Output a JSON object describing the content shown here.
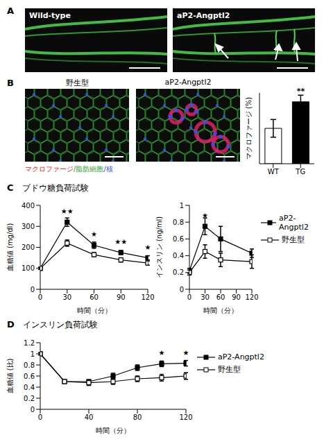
{
  "figure": {
    "panel_a": {
      "label": "A",
      "images": [
        "Wild-type",
        "aP2-Angptl2"
      ]
    },
    "panel_b": {
      "label": "B",
      "images": [
        "野生型",
        "aP2-Angptl2"
      ],
      "stain_legend": [
        {
          "text": "マクロファージ",
          "color": "#ff2020"
        },
        {
          "text": "/脂肪細胞",
          "color": "#2a9a2a"
        },
        {
          "text": "/核",
          "color": "#3050ff"
        }
      ]
    }
  },
  "chart_data": [
    {
      "type": "bar",
      "ylabel": "マクロファージ (%)",
      "categories": [
        "WT",
        "TG"
      ],
      "values": [
        8,
        14
      ],
      "errors": [
        2,
        1.5
      ],
      "colors": [
        "#ffffff",
        "#000000"
      ],
      "ylim": [
        0,
        16
      ],
      "tick_labels": "x",
      "annotations": [
        {
          "category": "TG",
          "text": "**"
        }
      ]
    },
    {
      "type": "line",
      "panel": "C",
      "title": "ブドウ糖負荷試験",
      "xlabel": "時間（分）",
      "ylabel": "血糖値 (mg/dl)",
      "x": [
        0,
        30,
        60,
        90,
        120
      ],
      "xlim": [
        0,
        120
      ],
      "xticks": [
        0,
        30,
        60,
        90,
        120
      ],
      "ylim": [
        0,
        400
      ],
      "yticks": [
        0,
        100,
        200,
        300,
        400
      ],
      "series": [
        {
          "name": "aP2-Angptl2",
          "color": "#000000",
          "marker": "square",
          "values": [
            100,
            320,
            210,
            175,
            150
          ],
          "errors": [
            5,
            20,
            15,
            10,
            10
          ]
        },
        {
          "name": "野生型",
          "color": "#000000",
          "marker": "open_square",
          "values": [
            100,
            220,
            165,
            140,
            125
          ],
          "errors": [
            5,
            15,
            10,
            10,
            10
          ]
        }
      ],
      "annotations": [
        {
          "x": 30,
          "text": "★★"
        },
        {
          "x": 60,
          "text": "★"
        },
        {
          "x": 90,
          "text": "★★"
        },
        {
          "x": 120,
          "text": "★"
        }
      ]
    },
    {
      "type": "line",
      "xlabel": "時間（分）",
      "ylabel": "インスリン (ng/ml)",
      "x": [
        0,
        30,
        60,
        120
      ],
      "xlim": [
        0,
        120
      ],
      "xticks": [
        0,
        30,
        60,
        90,
        120
      ],
      "ylim": [
        0,
        1
      ],
      "yticks": [
        0,
        0.2,
        0.4,
        0.6,
        0.8,
        1
      ],
      "legend": "right",
      "series": [
        {
          "name": "aP2-Angptl2",
          "color": "#000000",
          "marker": "square",
          "values": [
            0.22,
            0.75,
            0.6,
            0.43
          ],
          "errors": [
            0.03,
            0.1,
            0.15,
            0.05
          ]
        },
        {
          "name": "野生型",
          "color": "#000000",
          "marker": "open_square",
          "values": [
            0.2,
            0.45,
            0.35,
            0.33
          ],
          "errors": [
            0.03,
            0.08,
            0.08,
            0.08
          ]
        }
      ],
      "annotations": [
        {
          "x": 30,
          "text": "★"
        }
      ]
    },
    {
      "type": "line",
      "panel": "D",
      "title": "インスリン負荷試験",
      "xlabel": "時間（分）",
      "ylabel": "血糖値 (比)",
      "x": [
        0,
        20,
        40,
        60,
        80,
        100,
        120
      ],
      "xlim": [
        0,
        120
      ],
      "xticks": [
        0,
        40,
        80,
        120
      ],
      "ylim": [
        0,
        1.2
      ],
      "yticks": [
        0,
        0.2,
        0.4,
        0.6,
        0.8,
        1,
        1.2
      ],
      "legend": "right",
      "series": [
        {
          "name": "aP2-Angptl2",
          "color": "#000000",
          "marker": "square",
          "values": [
            1,
            0.5,
            0.5,
            0.6,
            0.75,
            0.82,
            0.83
          ],
          "errors": [
            0.02,
            0.03,
            0.03,
            0.05,
            0.05,
            0.05,
            0.05
          ]
        },
        {
          "name": "野生型",
          "color": "#000000",
          "marker": "open_square",
          "values": [
            1,
            0.5,
            0.48,
            0.5,
            0.55,
            0.57,
            0.6
          ],
          "errors": [
            0.02,
            0.03,
            0.05,
            0.05,
            0.05,
            0.06,
            0.06
          ]
        }
      ],
      "annotations": [
        {
          "x": 100,
          "text": "★"
        },
        {
          "x": 120,
          "text": "★"
        }
      ]
    }
  ]
}
